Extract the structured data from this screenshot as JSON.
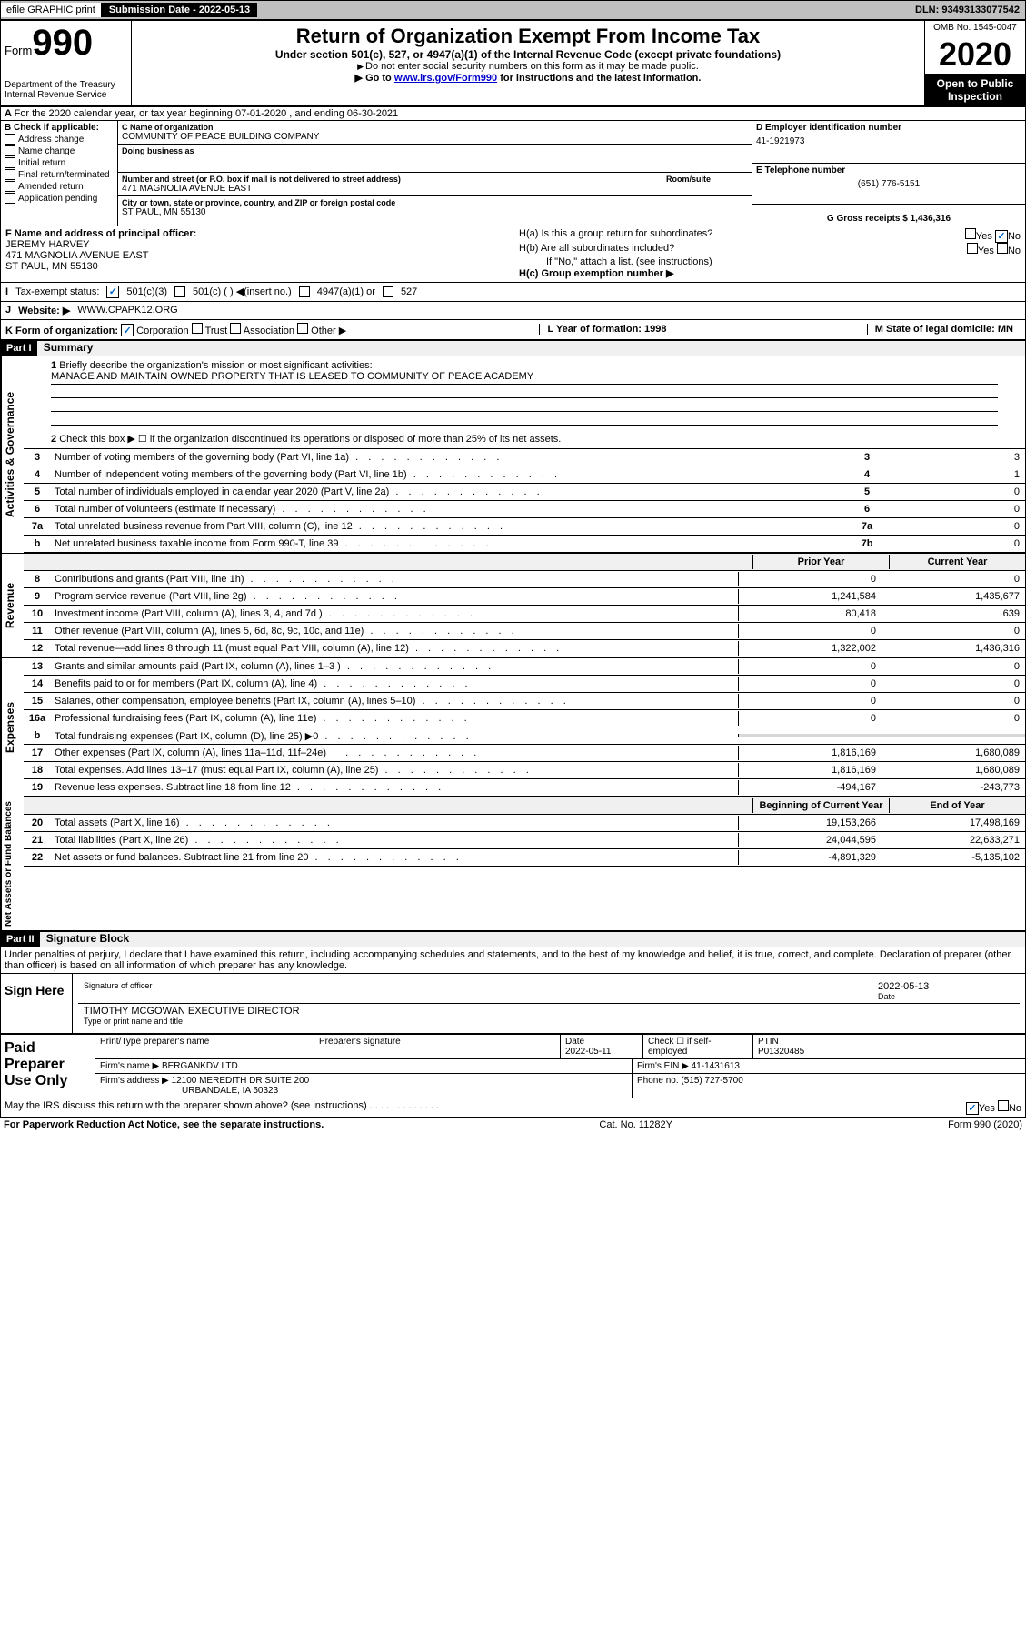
{
  "topbar": {
    "efile": "efile GRAPHIC print",
    "submission_label": "Submission Date - 2022-05-13",
    "dln": "DLN: 93493133077542"
  },
  "header": {
    "form_prefix": "Form",
    "form_no": "990",
    "dept": "Department of the Treasury\nInternal Revenue Service",
    "title": "Return of Organization Exempt From Income Tax",
    "sub": "Under section 501(c), 527, or 4947(a)(1) of the Internal Revenue Code (except private foundations)",
    "note1": "Do not enter social security numbers on this form as it may be made public.",
    "note2_pre": "Go to ",
    "note2_link": "www.irs.gov/Form990",
    "note2_post": " for instructions and the latest information.",
    "omb": "OMB No. 1545-0047",
    "year": "2020",
    "open": "Open to Public Inspection"
  },
  "line_a": "For the 2020 calendar year, or tax year beginning 07-01-2020   , and ending 06-30-2021",
  "box_b": {
    "label": "B Check if applicable:",
    "opt1": "Address change",
    "opt2": "Name change",
    "opt3": "Initial return",
    "opt4": "Final return/terminated",
    "opt5": "Amended return",
    "opt6": "Application pending"
  },
  "box_c": {
    "name_label": "C Name of organization",
    "name": "COMMUNITY OF PEACE BUILDING COMPANY",
    "dba_label": "Doing business as",
    "street_label": "Number and street (or P.O. box if mail is not delivered to street address)",
    "room_label": "Room/suite",
    "street": "471 MAGNOLIA AVENUE EAST",
    "city_label": "City or town, state or province, country, and ZIP or foreign postal code",
    "city": "ST PAUL, MN  55130"
  },
  "box_d": {
    "label": "D Employer identification number",
    "val": "41-1921973"
  },
  "box_e": {
    "label": "E Telephone number",
    "val": "(651) 776-5151"
  },
  "box_g": {
    "label": "G Gross receipts $ 1,436,316"
  },
  "box_f": {
    "label": "F  Name and address of principal officer:",
    "name": "JEREMY HARVEY",
    "addr1": "471 MAGNOLIA AVENUE EAST",
    "addr2": "ST PAUL, MN  55130"
  },
  "box_h": {
    "ha": "H(a)  Is this a group return for subordinates?",
    "hb": "H(b)  Are all subordinates included?",
    "hb_note": "If \"No,\" attach a list. (see instructions)",
    "hc": "H(c)  Group exemption number ▶",
    "yes": "Yes",
    "no": "No"
  },
  "line_i": {
    "label": "Tax-exempt status:",
    "o1": "501(c)(3)",
    "o2": "501(c) (  ) ◀(insert no.)",
    "o3": "4947(a)(1) or",
    "o4": "527"
  },
  "line_j": {
    "label": "Website: ▶",
    "val": "WWW.CPAPK12.ORG"
  },
  "line_k": {
    "label": "K Form of organization:",
    "o1": "Corporation",
    "o2": "Trust",
    "o3": "Association",
    "o4": "Other ▶"
  },
  "line_l": {
    "label": "L Year of formation: 1998"
  },
  "line_m": {
    "label": "M State of legal domicile: MN"
  },
  "part1": {
    "header": "Part I",
    "title": "Summary",
    "q1_label": "Briefly describe the organization's mission or most significant activities:",
    "q1_text": "MANAGE AND MAINTAIN OWNED PROPERTY THAT IS LEASED TO COMMUNITY OF PEACE ACADEMY",
    "q2": "Check this box ▶ ☐  if the organization discontinued its operations or disposed of more than 25% of its net assets.",
    "side_gov": "Activities & Governance",
    "side_rev": "Revenue",
    "side_exp": "Expenses",
    "side_net": "Net Assets or Fund Balances",
    "col_prior": "Prior Year",
    "col_curr": "Current Year",
    "col_begin": "Beginning of Current Year",
    "col_end": "End of Year",
    "rows_gov": [
      {
        "n": "3",
        "label": "Number of voting members of the governing body (Part VI, line 1a)",
        "box": "3",
        "val": "3"
      },
      {
        "n": "4",
        "label": "Number of independent voting members of the governing body (Part VI, line 1b)",
        "box": "4",
        "val": "1"
      },
      {
        "n": "5",
        "label": "Total number of individuals employed in calendar year 2020 (Part V, line 2a)",
        "box": "5",
        "val": "0"
      },
      {
        "n": "6",
        "label": "Total number of volunteers (estimate if necessary)",
        "box": "6",
        "val": "0"
      },
      {
        "n": "7a",
        "label": "Total unrelated business revenue from Part VIII, column (C), line 12",
        "box": "7a",
        "val": "0"
      },
      {
        "n": "b",
        "label": "Net unrelated business taxable income from Form 990-T, line 39",
        "box": "7b",
        "val": "0"
      }
    ],
    "rows_rev": [
      {
        "n": "8",
        "label": "Contributions and grants (Part VIII, line 1h)",
        "p": "0",
        "c": "0"
      },
      {
        "n": "9",
        "label": "Program service revenue (Part VIII, line 2g)",
        "p": "1,241,584",
        "c": "1,435,677"
      },
      {
        "n": "10",
        "label": "Investment income (Part VIII, column (A), lines 3, 4, and 7d )",
        "p": "80,418",
        "c": "639"
      },
      {
        "n": "11",
        "label": "Other revenue (Part VIII, column (A), lines 5, 6d, 8c, 9c, 10c, and 11e)",
        "p": "0",
        "c": "0"
      },
      {
        "n": "12",
        "label": "Total revenue—add lines 8 through 11 (must equal Part VIII, column (A), line 12)",
        "p": "1,322,002",
        "c": "1,436,316"
      }
    ],
    "rows_exp": [
      {
        "n": "13",
        "label": "Grants and similar amounts paid (Part IX, column (A), lines 1–3 )",
        "p": "0",
        "c": "0"
      },
      {
        "n": "14",
        "label": "Benefits paid to or for members (Part IX, column (A), line 4)",
        "p": "0",
        "c": "0"
      },
      {
        "n": "15",
        "label": "Salaries, other compensation, employee benefits (Part IX, column (A), lines 5–10)",
        "p": "0",
        "c": "0"
      },
      {
        "n": "16a",
        "label": "Professional fundraising fees (Part IX, column (A), line 11e)",
        "p": "0",
        "c": "0"
      },
      {
        "n": "b",
        "label": "Total fundraising expenses (Part IX, column (D), line 25) ▶0",
        "p": "",
        "c": "",
        "gray": true
      },
      {
        "n": "17",
        "label": "Other expenses (Part IX, column (A), lines 11a–11d, 11f–24e)",
        "p": "1,816,169",
        "c": "1,680,089"
      },
      {
        "n": "18",
        "label": "Total expenses. Add lines 13–17 (must equal Part IX, column (A), line 25)",
        "p": "1,816,169",
        "c": "1,680,089"
      },
      {
        "n": "19",
        "label": "Revenue less expenses. Subtract line 18 from line 12",
        "p": "-494,167",
        "c": "-243,773"
      }
    ],
    "rows_net": [
      {
        "n": "20",
        "label": "Total assets (Part X, line 16)",
        "p": "19,153,266",
        "c": "17,498,169"
      },
      {
        "n": "21",
        "label": "Total liabilities (Part X, line 26)",
        "p": "24,044,595",
        "c": "22,633,271"
      },
      {
        "n": "22",
        "label": "Net assets or fund balances. Subtract line 21 from line 20",
        "p": "-4,891,329",
        "c": "-5,135,102"
      }
    ]
  },
  "part2": {
    "header": "Part II",
    "title": "Signature Block",
    "penalty": "Under penalties of perjury, I declare that I have examined this return, including accompanying schedules and statements, and to the best of my knowledge and belief, it is true, correct, and complete. Declaration of preparer (other than officer) is based on all information of which preparer has any knowledge.",
    "sign_here": "Sign Here",
    "sig_officer": "Signature of officer",
    "date_label": "Date",
    "date_val": "2022-05-13",
    "officer_name": "TIMOTHY MCGOWAN  EXECUTIVE DIRECTOR",
    "type_name": "Type or print name and title",
    "paid": "Paid Preparer Use Only",
    "prep_name_label": "Print/Type preparer's name",
    "prep_sig_label": "Preparer's signature",
    "prep_date_label": "Date",
    "prep_date": "2022-05-11",
    "check_self": "Check ☐ if self-employed",
    "ptin_label": "PTIN",
    "ptin": "P01320485",
    "firm_name_label": "Firm's name    ▶",
    "firm_name": "BERGANKDV LTD",
    "firm_ein_label": "Firm's EIN ▶",
    "firm_ein": "41-1431613",
    "firm_addr_label": "Firm's address ▶",
    "firm_addr1": "12100 MEREDITH DR SUITE 200",
    "firm_addr2": "URBANDALE, IA  50323",
    "phone_label": "Phone no.",
    "phone": "(515) 727-5700",
    "discuss": "May the IRS discuss this return with the preparer shown above? (see instructions)",
    "yes": "Yes",
    "no": "No"
  },
  "footer": {
    "left": "For Paperwork Reduction Act Notice, see the separate instructions.",
    "mid": "Cat. No. 11282Y",
    "right": "Form 990 (2020)"
  }
}
